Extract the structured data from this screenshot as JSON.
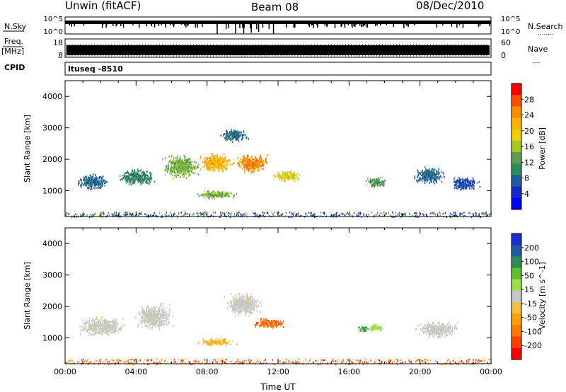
{
  "header": {
    "station": "Unwin (fitACF)",
    "beam": "Beam 08",
    "date": "08/Dec/2010"
  },
  "side_labels": {
    "nsky": "N.Sky",
    "freq_line1": "Freq.",
    "freq_line2": "[MHz]",
    "cpid": "CPID",
    "nsearch": "N.Search",
    "nsearch_dots": "........",
    "nave": "Nave",
    "nave_dots": "....",
    "noise_ticks_left": [
      "10^5",
      "10^0"
    ],
    "noise_ticks_right": [
      "10^5",
      "10^0"
    ],
    "freq_ticks_left": [
      "18",
      "8"
    ],
    "freq_ticks_right": [
      "60",
      "0"
    ],
    "cpid_label": "ltuseq -8510"
  },
  "colorbars": {
    "power": {
      "label": "Power [dB]",
      "ticks": [
        "28",
        "24",
        "20",
        "16",
        "12",
        "8",
        "4"
      ],
      "colors": [
        "#ff0000",
        "#ff4d00",
        "#ff8c00",
        "#ffb400",
        "#f0d000",
        "#a8c828",
        "#5a9c50",
        "#2e8b57",
        "#1e5aa0",
        "#1428c8",
        "#0000ff"
      ]
    },
    "velocity": {
      "label": "Velocity [m s^-1]",
      "ticks": [
        "200",
        "100",
        "50",
        "15",
        "-15",
        "-50",
        "-100",
        "-200"
      ],
      "colors": [
        "#1a2ed0",
        "#1e5aa0",
        "#2e8b57",
        "#5fbf2f",
        "#9be04a",
        "#c8c8c8",
        "#f0c040",
        "#ffa000",
        "#ff7a00",
        "#ff4000",
        "#ff0000"
      ]
    }
  },
  "chart_data": [
    {
      "type": "heatmap",
      "name": "power",
      "ylabel": "Slant Range [km]",
      "xlabel": "",
      "x_ticks": [
        "00:00",
        "04:00",
        "08:00",
        "12:00",
        "16:00",
        "20:00",
        "00:00"
      ],
      "y_ticks": [
        "1000",
        "2000",
        "3000",
        "4000"
      ],
      "xlim": [
        0,
        24
      ],
      "ylim": [
        180,
        4500
      ],
      "scale": "Power [dB]",
      "blobs": [
        {
          "t": 1.5,
          "r": 1300,
          "dt": 1.8,
          "dr": 450,
          "value": 8
        },
        {
          "t": 4.0,
          "r": 1450,
          "dt": 2.0,
          "dr": 500,
          "value": 10
        },
        {
          "t": 6.5,
          "r": 1800,
          "dt": 2.0,
          "dr": 700,
          "value": 14
        },
        {
          "t": 8.5,
          "r": 1900,
          "dt": 1.8,
          "dr": 600,
          "value": 22
        },
        {
          "t": 10.5,
          "r": 1900,
          "dt": 1.8,
          "dr": 550,
          "value": 25
        },
        {
          "t": 12.5,
          "r": 1500,
          "dt": 1.6,
          "dr": 350,
          "value": 18
        },
        {
          "t": 8.5,
          "r": 900,
          "dt": 2.2,
          "dr": 250,
          "value": 14
        },
        {
          "t": 9.5,
          "r": 2800,
          "dt": 1.5,
          "dr": 400,
          "value": 8
        },
        {
          "t": 17.5,
          "r": 1300,
          "dt": 1.2,
          "dr": 300,
          "value": 12
        },
        {
          "t": 20.5,
          "r": 1500,
          "dt": 1.8,
          "dr": 500,
          "value": 8
        },
        {
          "t": 22.5,
          "r": 1250,
          "dt": 1.6,
          "dr": 400,
          "value": 6
        }
      ]
    },
    {
      "type": "heatmap",
      "name": "velocity",
      "ylabel": "Slant Range [km]",
      "xlabel": "Time UT",
      "x_ticks": [
        "00:00",
        "04:00",
        "08:00",
        "12:00",
        "16:00",
        "20:00",
        "00:00"
      ],
      "y_ticks": [
        "1000",
        "2000",
        "3000",
        "4000"
      ],
      "xlim": [
        0,
        24
      ],
      "ylim": [
        180,
        4500
      ],
      "scale": "Velocity [m s^-1]",
      "blobs": [
        {
          "t": 2.0,
          "r": 1400,
          "dt": 2.5,
          "dr": 600,
          "value": 0
        },
        {
          "t": 5.0,
          "r": 1700,
          "dt": 2.0,
          "dr": 800,
          "value": 0
        },
        {
          "t": 8.5,
          "r": 900,
          "dt": 2.0,
          "dr": 250,
          "value": -60
        },
        {
          "t": 11.5,
          "r": 1500,
          "dt": 1.8,
          "dr": 300,
          "value": -150
        },
        {
          "t": 10.0,
          "r": 2100,
          "dt": 2.0,
          "dr": 700,
          "value": 0
        },
        {
          "t": 17.5,
          "r": 1350,
          "dt": 0.9,
          "dr": 250,
          "value": 40
        },
        {
          "t": 16.8,
          "r": 1300,
          "dt": 0.6,
          "dr": 200,
          "value": 120
        },
        {
          "t": 21.0,
          "r": 1300,
          "dt": 2.2,
          "dr": 500,
          "value": 0
        }
      ]
    }
  ]
}
